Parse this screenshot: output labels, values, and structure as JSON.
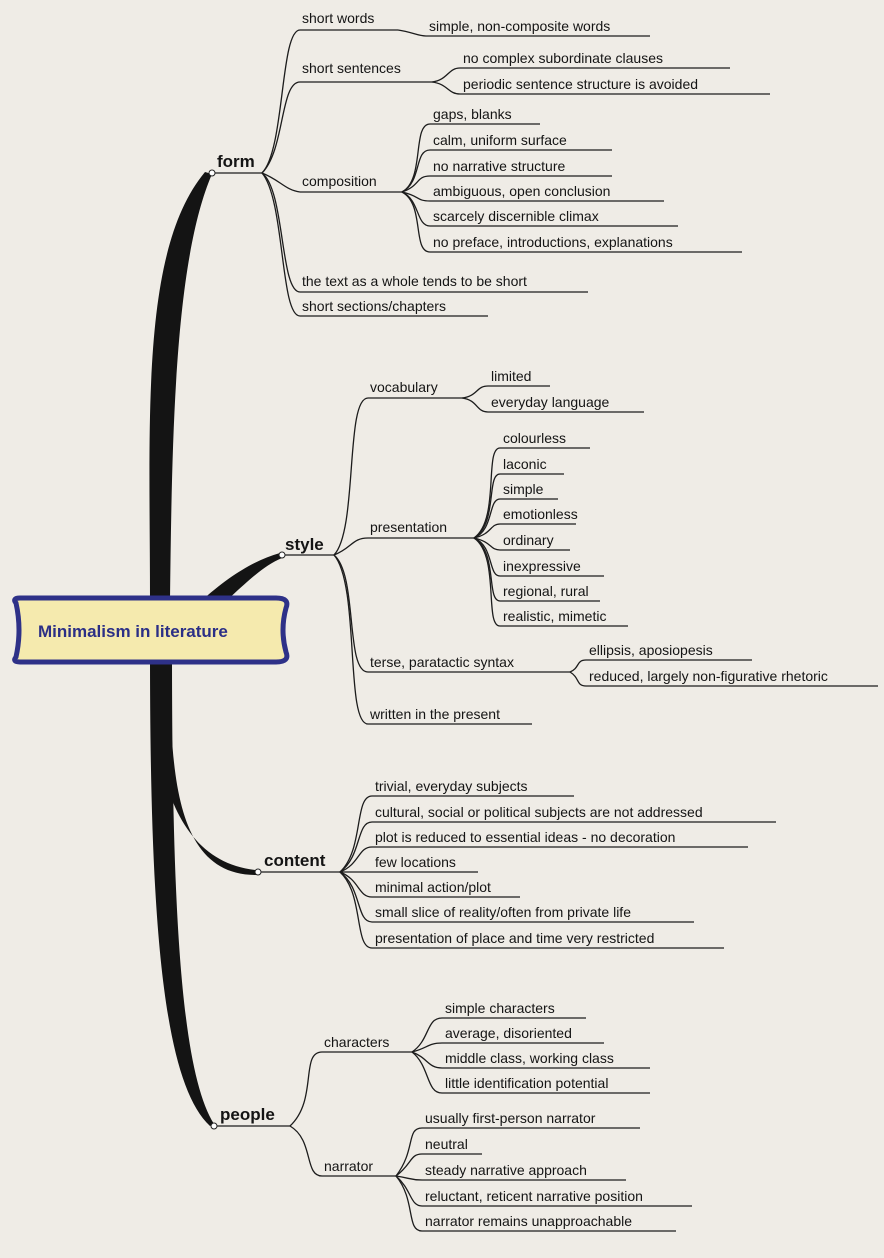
{
  "root": {
    "label": "Minimalism in literature"
  },
  "colors": {
    "background": "#efece6",
    "root_fill": "#f5eaae",
    "root_border": "#2e3188",
    "root_text": "#2b2f86",
    "lines": "#141414"
  },
  "form": {
    "label": "form",
    "short_words": {
      "label": "short words",
      "items": [
        "simple, non-composite words"
      ]
    },
    "short_sentences": {
      "label": "short sentences",
      "items": [
        "no complex subordinate clauses",
        "periodic sentence structure is avoided"
      ]
    },
    "composition": {
      "label": "composition",
      "items": [
        "gaps, blanks",
        "calm, uniform surface",
        "no narrative structure",
        "ambiguous, open conclusion",
        "scarcely discernible climax",
        "no preface, introductions, explanations"
      ]
    },
    "text_short": "the text as a whole tends to be short",
    "short_sections": "short sections/chapters"
  },
  "style": {
    "label": "style",
    "vocabulary": {
      "label": "vocabulary",
      "items": [
        "limited",
        "everyday language"
      ]
    },
    "presentation": {
      "label": "presentation",
      "items": [
        "colourless",
        "laconic",
        "simple",
        "emotionless",
        "ordinary",
        "inexpressive",
        "regional, rural",
        "realistic, mimetic"
      ]
    },
    "syntax": {
      "label": "terse, paratactic syntax",
      "items": [
        "ellipsis, aposiopesis",
        "reduced, largely non-figurative rhetoric"
      ]
    },
    "present": "written in the present"
  },
  "content": {
    "label": "content",
    "items": [
      "trivial, everyday subjects",
      "cultural, social or political subjects are not addressed",
      "plot is reduced to essential ideas - no decoration",
      "few locations",
      "minimal action/plot",
      "small slice of reality/often from private life",
      "presentation of place and time very restricted"
    ]
  },
  "people": {
    "label": "people",
    "characters": {
      "label": "characters",
      "items": [
        "simple characters",
        "average, disoriented",
        "middle class, working class",
        "little identification potential"
      ]
    },
    "narrator": {
      "label": "narrator",
      "items": [
        "usually first-person narrator",
        "neutral",
        "steady narrative approach",
        "reluctant, reticent narrative position",
        "narrator remains unapproachable"
      ]
    }
  }
}
